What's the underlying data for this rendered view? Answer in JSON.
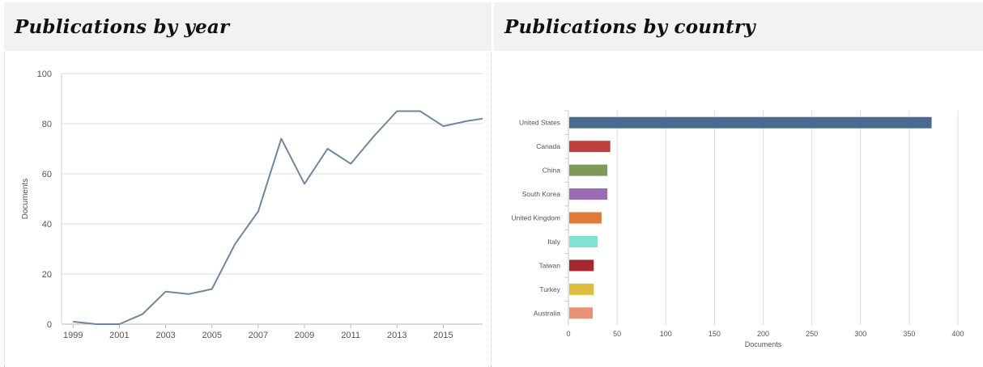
{
  "panels": {
    "year": {
      "heading": "Publications by year"
    },
    "country": {
      "heading": "Publications by country"
    }
  },
  "chart_data": [
    {
      "type": "line",
      "ylabel": "Documents",
      "xlabel": "",
      "ylim": [
        0,
        100
      ],
      "yticks": [
        0,
        20,
        40,
        60,
        80,
        100
      ],
      "xlim": [
        1998.5,
        2016.7
      ],
      "xticks": [
        1999,
        2001,
        2003,
        2005,
        2007,
        2009,
        2011,
        2013,
        2015
      ],
      "grid": true,
      "line_color": "#6d87a1",
      "series": [
        {
          "x": [
            1999,
            2000,
            2001,
            2002,
            2003,
            2004,
            2005,
            2006,
            2007,
            2008,
            2009,
            2010,
            2011,
            2012,
            2013,
            2014,
            2015,
            2016,
            2016.7
          ],
          "values": [
            1,
            0,
            0,
            4,
            13,
            12,
            14,
            32,
            45,
            74,
            56,
            70,
            64,
            75,
            85,
            85,
            79,
            81,
            82
          ]
        }
      ]
    },
    {
      "type": "bar",
      "orientation": "horizontal",
      "xlabel": "Documents",
      "ylabel": "",
      "xlim": [
        0,
        400
      ],
      "xticks": [
        0,
        50,
        100,
        150,
        200,
        250,
        300,
        350,
        400
      ],
      "grid": true,
      "categories": [
        "United States",
        "Canada",
        "China",
        "South Korea",
        "United Kingdom",
        "Italy",
        "Taiwan",
        "Turkey",
        "Australia"
      ],
      "values": [
        373,
        43,
        40,
        40,
        34,
        30,
        26,
        26,
        25
      ],
      "colors": [
        "#4a6a8f",
        "#c04040",
        "#7e9a58",
        "#9b6cb3",
        "#e07a3a",
        "#7ee3d0",
        "#a5272f",
        "#ddbd40",
        "#e89175"
      ]
    }
  ]
}
